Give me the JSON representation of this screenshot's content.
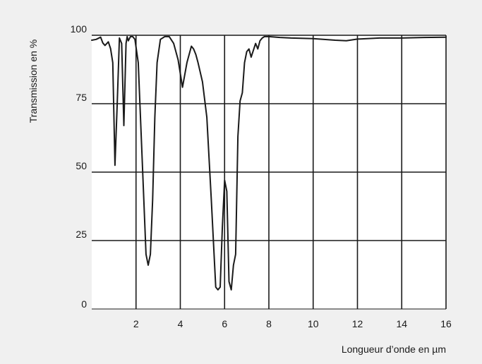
{
  "chart_data": {
    "type": "line",
    "title": "",
    "xlabel": "Longueur d’onde en µm",
    "ylabel": "Transmission en %",
    "xlim": [
      0,
      16
    ],
    "ylim": [
      0,
      100
    ],
    "x_ticks": [
      2,
      4,
      6,
      8,
      10,
      12,
      14,
      16
    ],
    "x_tick_labels": [
      "2",
      "4",
      "6",
      "8",
      "10",
      "12",
      "14",
      "16"
    ],
    "y_ticks": [
      0,
      25,
      50,
      75,
      100
    ],
    "y_tick_labels": [
      "0",
      "25",
      "50",
      "75",
      "100"
    ],
    "grid": true,
    "legend": "none",
    "colors": {
      "background": "#f0f0f0",
      "plot_background": "#ffffff",
      "grid": "#1a1a1a",
      "line": "#1a1a1a"
    },
    "series": [
      {
        "x": [
          0.0,
          0.2,
          0.4,
          0.5,
          0.6,
          0.75,
          0.85,
          0.95,
          1.05,
          1.15,
          1.25,
          1.35,
          1.45,
          1.55,
          1.6,
          1.65,
          1.75,
          1.85,
          1.95,
          2.1,
          2.3,
          2.45,
          2.55,
          2.65,
          2.75,
          2.85,
          2.95,
          3.1,
          3.3,
          3.5,
          3.7,
          3.9,
          4.1,
          4.3,
          4.5,
          4.6,
          4.7,
          4.8,
          5.0,
          5.2,
          5.4,
          5.6,
          5.7,
          5.8,
          5.9,
          6.0,
          6.1,
          6.2,
          6.3,
          6.4,
          6.5,
          6.6,
          6.7,
          6.8,
          6.9,
          7.0,
          7.1,
          7.2,
          7.4,
          7.5,
          7.6,
          7.7,
          7.8,
          7.9,
          8.0,
          8.5,
          9.0,
          10.0,
          11.0,
          11.5,
          12.0,
          13.0,
          14.0,
          15.0,
          16.0
        ],
        "y": [
          98.2,
          98.5,
          99.3,
          97.2,
          96.3,
          97.6,
          95.1,
          90.0,
          52.5,
          75.0,
          99.0,
          97.0,
          67.0,
          97.0,
          99.5,
          98.0,
          99.5,
          99.5,
          98.5,
          90.0,
          50.0,
          20.0,
          16.0,
          20.0,
          40.0,
          70.0,
          90.0,
          98.5,
          99.5,
          99.5,
          97.0,
          91.0,
          81.0,
          90.0,
          96.0,
          95.0,
          93.0,
          90.0,
          83.0,
          70.0,
          40.0,
          8.0,
          7.0,
          8.0,
          30.0,
          47.0,
          43.0,
          10.0,
          7.0,
          16.0,
          20.0,
          63.0,
          76.0,
          79.0,
          90.0,
          94.0,
          95.0,
          92.0,
          97.0,
          95.0,
          98.0,
          99.0,
          99.5,
          99.5,
          99.5,
          99.2,
          99.0,
          98.8,
          98.2,
          98.0,
          98.6,
          99.0,
          99.0,
          99.2,
          99.3
        ]
      }
    ]
  }
}
